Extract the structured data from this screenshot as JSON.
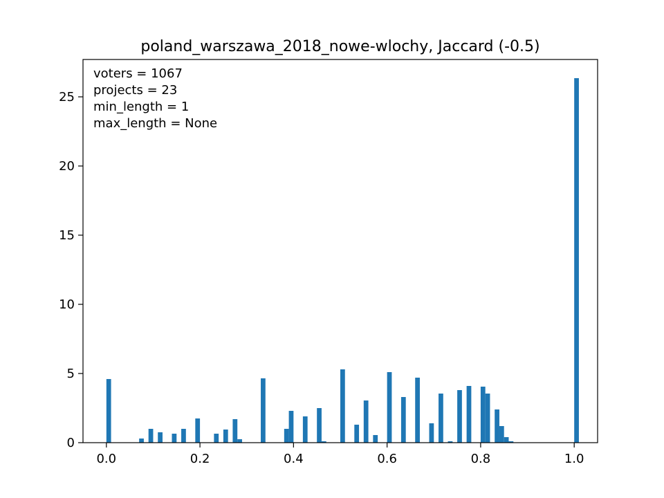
{
  "chart_data": {
    "type": "bar",
    "title": "poland_warszawa_2018_nowe-wlochy, Jaccard (-0.5)",
    "xlabel": "",
    "ylabel": "",
    "xlim": [
      -0.05,
      1.05
    ],
    "ylim": [
      0,
      27.7
    ],
    "bar_width": 0.01,
    "color": "#1f77b4",
    "grid": false,
    "x_ticks": [
      0.0,
      0.2,
      0.4,
      0.6,
      0.8,
      1.0
    ],
    "x_tick_labels": [
      "0.0",
      "0.2",
      "0.4",
      "0.6",
      "0.8",
      "1.0"
    ],
    "y_ticks": [
      0,
      5,
      10,
      15,
      20,
      25
    ],
    "y_tick_labels": [
      "0",
      "5",
      "10",
      "15",
      "20",
      "25"
    ],
    "annotations": [
      "voters = 1067",
      "projects = 23",
      "min_length = 1",
      "max_length = None"
    ],
    "x": [
      0.005,
      0.075,
      0.095,
      0.115,
      0.145,
      0.165,
      0.195,
      0.235,
      0.255,
      0.275,
      0.285,
      0.335,
      0.385,
      0.395,
      0.425,
      0.455,
      0.465,
      0.505,
      0.535,
      0.555,
      0.575,
      0.605,
      0.635,
      0.665,
      0.695,
      0.715,
      0.735,
      0.755,
      0.775,
      0.805,
      0.815,
      0.835,
      0.845,
      0.855,
      0.865,
      1.005
    ],
    "values": [
      4.6,
      0.3,
      1.0,
      0.75,
      0.65,
      1.0,
      1.75,
      0.65,
      0.95,
      1.7,
      0.25,
      4.65,
      1.0,
      2.3,
      1.9,
      2.5,
      0.1,
      5.3,
      1.3,
      3.05,
      0.55,
      5.1,
      3.3,
      4.7,
      1.4,
      3.55,
      0.1,
      3.8,
      4.1,
      4.05,
      3.55,
      2.4,
      1.2,
      0.4,
      0.1,
      26.35
    ]
  }
}
